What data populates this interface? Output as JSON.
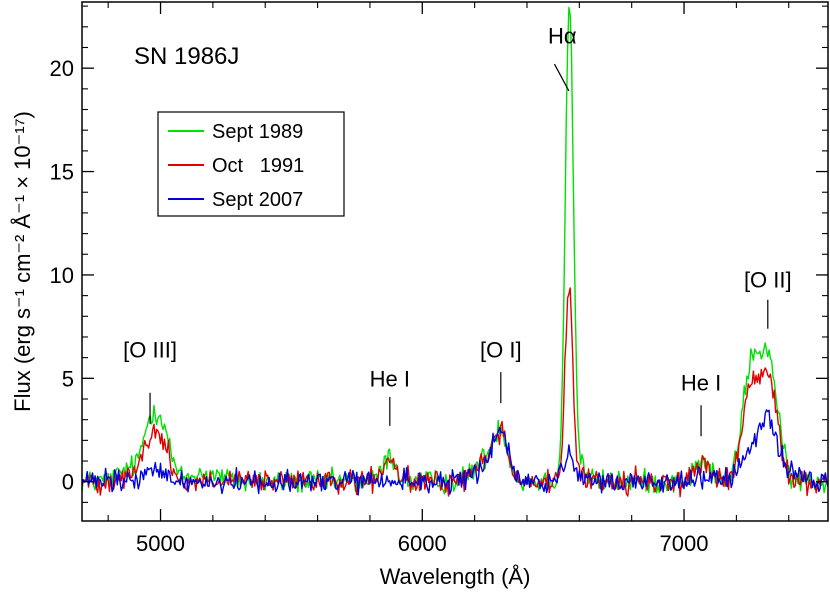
{
  "chart_data": {
    "type": "line",
    "title": "SN 1986J",
    "xlabel": "Wavelength (Å)",
    "ylabel": "Flux (erg s⁻¹ cm⁻² Å⁻¹ × 10⁻¹⁷)",
    "xlim": [
      4700,
      7550
    ],
    "ylim": [
      -1.9,
      23.2
    ],
    "x_ticks": [
      5000,
      6000,
      7000
    ],
    "x_tick_labels": [
      "5000",
      "6000",
      "7000"
    ],
    "y_ticks": [
      0,
      5,
      10,
      15,
      20
    ],
    "y_tick_labels": [
      "0",
      "5",
      "10",
      "15",
      "20"
    ],
    "legend_position": "upper-left",
    "series": [
      {
        "name": "Sept 1989",
        "color": "#00e000",
        "features": [
          {
            "center": 4960,
            "width": 28,
            "amp": 2.6
          },
          {
            "center": 5010,
            "width": 28,
            "amp": 2.4
          },
          {
            "center": 4880,
            "width": 40,
            "amp": 0.6
          },
          {
            "center": 5170,
            "width": 60,
            "amp": 0.4
          },
          {
            "center": 5875,
            "width": 25,
            "amp": 1.2
          },
          {
            "center": 6240,
            "width": 45,
            "amp": 1.0
          },
          {
            "center": 6300,
            "width": 28,
            "amp": 2.2
          },
          {
            "center": 6562,
            "width": 15,
            "amp": 22.5
          },
          {
            "center": 6580,
            "width": 35,
            "amp": 1.0
          },
          {
            "center": 7070,
            "width": 28,
            "amp": 1.0
          },
          {
            "center": 7250,
            "width": 28,
            "amp": 4.3
          },
          {
            "center": 7320,
            "width": 35,
            "amp": 5.6
          },
          {
            "center": 7280,
            "width": 60,
            "amp": 0.8
          }
        ]
      },
      {
        "name": "Oct   1991",
        "color": "#e00000",
        "features": [
          {
            "center": 4960,
            "width": 28,
            "amp": 1.8
          },
          {
            "center": 5010,
            "width": 28,
            "amp": 1.6
          },
          {
            "center": 4880,
            "width": 40,
            "amp": 0.4
          },
          {
            "center": 5875,
            "width": 25,
            "amp": 1.0
          },
          {
            "center": 6240,
            "width": 45,
            "amp": 0.9
          },
          {
            "center": 6300,
            "width": 28,
            "amp": 2.1
          },
          {
            "center": 6560,
            "width": 14,
            "amp": 8.8
          },
          {
            "center": 6580,
            "width": 35,
            "amp": 0.5
          },
          {
            "center": 7070,
            "width": 28,
            "amp": 0.9
          },
          {
            "center": 7250,
            "width": 28,
            "amp": 3.5
          },
          {
            "center": 7320,
            "width": 35,
            "amp": 4.6
          },
          {
            "center": 7280,
            "width": 60,
            "amp": 0.6
          }
        ]
      },
      {
        "name": "Sept 2007",
        "color": "#0000e0",
        "features": [
          {
            "center": 4980,
            "width": 40,
            "amp": 0.5
          },
          {
            "center": 6300,
            "width": 28,
            "amp": 2.3
          },
          {
            "center": 6250,
            "width": 45,
            "amp": 0.6
          },
          {
            "center": 6560,
            "width": 18,
            "amp": 1.3
          },
          {
            "center": 7070,
            "width": 35,
            "amp": 0.3
          },
          {
            "center": 7250,
            "width": 30,
            "amp": 1.5
          },
          {
            "center": 7320,
            "width": 30,
            "amp": 3.0
          },
          {
            "center": 7400,
            "width": 40,
            "amp": 0.6
          }
        ]
      }
    ],
    "annotations": [
      {
        "label": "[O III]",
        "wavelength": 4960,
        "line_from": 2.8,
        "line_to": 4.3,
        "label_y": 6.0
      },
      {
        "label": "He I",
        "wavelength": 5876,
        "line_from": 2.7,
        "line_to": 4.1,
        "label_y": 4.6
      },
      {
        "label": "[O I]",
        "wavelength": 6300,
        "line_from": 3.8,
        "line_to": 5.3,
        "label_y": 6.0
      },
      {
        "label": "Hα",
        "wavelength": 6535,
        "line_from": 18.9,
        "line_to": 20.2,
        "label_y": 21.2
      },
      {
        "label": "He I",
        "wavelength": 7065,
        "line_from": 2.2,
        "line_to": 3.7,
        "label_y": 4.4
      },
      {
        "label": "[O II]",
        "wavelength": 7320,
        "line_from": 7.4,
        "line_to": 8.8,
        "label_y": 9.4
      }
    ]
  }
}
